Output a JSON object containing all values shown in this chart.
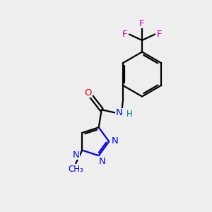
{
  "bg_color": "#eeeeee",
  "bond_color": "#000000",
  "n_color": "#0000ee",
  "o_color": "#dd0000",
  "f_color": "#cc00cc",
  "nh_color": "#008080",
  "figsize": [
    3.0,
    3.0
  ],
  "dpi": 100,
  "xlim": [
    0,
    10
  ],
  "ylim": [
    0,
    10
  ]
}
